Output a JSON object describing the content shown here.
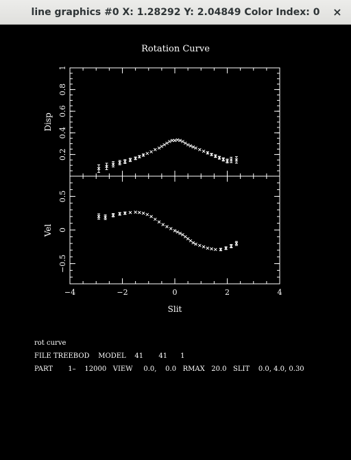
{
  "window": {
    "title": "line graphics #0 X: 1.28292 Y: 2.04849 Color Index: 0",
    "close_icon": "×"
  },
  "colors": {
    "background": "#000000",
    "foreground": "#ffffff",
    "titlebar": "#e8e8e7",
    "titlebar_text": "#2e3436"
  },
  "chart_data": [
    {
      "type": "scatter",
      "title": "Rotation Curve",
      "xlabel": "",
      "ylabel": "Disp",
      "xlim": [
        -4,
        4
      ],
      "ylim": [
        0,
        1
      ],
      "x_ticks": [],
      "y_ticks": [
        "0.2",
        "0.4",
        "0.6",
        "0.8",
        "1"
      ],
      "error_bars": true,
      "points": [
        {
          "x": -2.9,
          "y": 0.07,
          "err": 0.035
        },
        {
          "x": -2.6,
          "y": 0.09,
          "err": 0.03
        },
        {
          "x": -2.35,
          "y": 0.11,
          "err": 0.025
        },
        {
          "x": -2.1,
          "y": 0.125,
          "err": 0.02
        },
        {
          "x": -1.9,
          "y": 0.135,
          "err": 0.018
        },
        {
          "x": -1.7,
          "y": 0.15,
          "err": 0.015
        },
        {
          "x": -1.5,
          "y": 0.165,
          "err": 0.012
        },
        {
          "x": -1.35,
          "y": 0.18,
          "err": 0.01
        },
        {
          "x": -1.2,
          "y": 0.195,
          "err": 0.01
        },
        {
          "x": -1.05,
          "y": 0.21,
          "err": 0.008
        },
        {
          "x": -0.9,
          "y": 0.225,
          "err": 0.008
        },
        {
          "x": -0.75,
          "y": 0.245,
          "err": 0.008
        },
        {
          "x": -0.6,
          "y": 0.26,
          "err": 0.008
        },
        {
          "x": -0.5,
          "y": 0.275,
          "err": 0.008
        },
        {
          "x": -0.4,
          "y": 0.29,
          "err": 0.008
        },
        {
          "x": -0.3,
          "y": 0.305,
          "err": 0.008
        },
        {
          "x": -0.2,
          "y": 0.32,
          "err": 0.008
        },
        {
          "x": -0.1,
          "y": 0.33,
          "err": 0.008
        },
        {
          "x": 0.0,
          "y": 0.33,
          "err": 0.008
        },
        {
          "x": 0.1,
          "y": 0.335,
          "err": 0.008
        },
        {
          "x": 0.2,
          "y": 0.33,
          "err": 0.008
        },
        {
          "x": 0.3,
          "y": 0.32,
          "err": 0.008
        },
        {
          "x": 0.4,
          "y": 0.305,
          "err": 0.008
        },
        {
          "x": 0.5,
          "y": 0.29,
          "err": 0.008
        },
        {
          "x": 0.6,
          "y": 0.28,
          "err": 0.008
        },
        {
          "x": 0.7,
          "y": 0.27,
          "err": 0.008
        },
        {
          "x": 0.8,
          "y": 0.26,
          "err": 0.008
        },
        {
          "x": 0.95,
          "y": 0.245,
          "err": 0.008
        },
        {
          "x": 1.1,
          "y": 0.23,
          "err": 0.008
        },
        {
          "x": 1.25,
          "y": 0.215,
          "err": 0.01
        },
        {
          "x": 1.4,
          "y": 0.2,
          "err": 0.01
        },
        {
          "x": 1.55,
          "y": 0.185,
          "err": 0.012
        },
        {
          "x": 1.7,
          "y": 0.17,
          "err": 0.013
        },
        {
          "x": 1.85,
          "y": 0.155,
          "err": 0.015
        },
        {
          "x": 2.0,
          "y": 0.14,
          "err": 0.018
        },
        {
          "x": 2.15,
          "y": 0.15,
          "err": 0.025
        },
        {
          "x": 2.35,
          "y": 0.15,
          "err": 0.03
        }
      ]
    },
    {
      "type": "scatter",
      "title": "",
      "xlabel": "Slit",
      "ylabel": "Vel",
      "xlim": [
        -4,
        4
      ],
      "ylim": [
        -0.8,
        0.8
      ],
      "x_ticks": [
        "−4",
        "−2",
        "0",
        "2",
        "4"
      ],
      "y_ticks": [
        "−0.5",
        "0",
        "0.5"
      ],
      "error_bars": true,
      "points": [
        {
          "x": -2.9,
          "y": 0.2,
          "err": 0.04
        },
        {
          "x": -2.65,
          "y": 0.19,
          "err": 0.035
        },
        {
          "x": -2.35,
          "y": 0.22,
          "err": 0.025
        },
        {
          "x": -2.1,
          "y": 0.24,
          "err": 0.02
        },
        {
          "x": -1.9,
          "y": 0.25,
          "err": 0.018
        },
        {
          "x": -1.7,
          "y": 0.26,
          "err": 0.015
        },
        {
          "x": -1.5,
          "y": 0.265,
          "err": 0.012
        },
        {
          "x": -1.35,
          "y": 0.26,
          "err": 0.01
        },
        {
          "x": -1.2,
          "y": 0.25,
          "err": 0.01
        },
        {
          "x": -1.05,
          "y": 0.23,
          "err": 0.01
        },
        {
          "x": -0.9,
          "y": 0.2,
          "err": 0.01
        },
        {
          "x": -0.75,
          "y": 0.16,
          "err": 0.01
        },
        {
          "x": -0.6,
          "y": 0.12,
          "err": 0.01
        },
        {
          "x": -0.45,
          "y": 0.08,
          "err": 0.01
        },
        {
          "x": -0.3,
          "y": 0.05,
          "err": 0.01
        },
        {
          "x": -0.15,
          "y": 0.02,
          "err": 0.01
        },
        {
          "x": 0.0,
          "y": -0.01,
          "err": 0.01
        },
        {
          "x": 0.1,
          "y": -0.03,
          "err": 0.01
        },
        {
          "x": 0.2,
          "y": -0.05,
          "err": 0.01
        },
        {
          "x": 0.3,
          "y": -0.07,
          "err": 0.01
        },
        {
          "x": 0.4,
          "y": -0.1,
          "err": 0.01
        },
        {
          "x": 0.5,
          "y": -0.13,
          "err": 0.01
        },
        {
          "x": 0.6,
          "y": -0.16,
          "err": 0.01
        },
        {
          "x": 0.7,
          "y": -0.19,
          "err": 0.01
        },
        {
          "x": 0.8,
          "y": -0.21,
          "err": 0.01
        },
        {
          "x": 0.95,
          "y": -0.23,
          "err": 0.01
        },
        {
          "x": 1.1,
          "y": -0.25,
          "err": 0.01
        },
        {
          "x": 1.25,
          "y": -0.27,
          "err": 0.012
        },
        {
          "x": 1.4,
          "y": -0.28,
          "err": 0.015
        },
        {
          "x": 1.55,
          "y": -0.29,
          "err": 0.015
        },
        {
          "x": 1.75,
          "y": -0.29,
          "err": 0.018
        },
        {
          "x": 1.95,
          "y": -0.27,
          "err": 0.02
        },
        {
          "x": 2.15,
          "y": -0.24,
          "err": 0.025
        },
        {
          "x": 2.35,
          "y": -0.2,
          "err": 0.03
        }
      ]
    }
  ],
  "footer": {
    "line1": "rot curve",
    "line2": "FILE TREEBOD    MODEL    41       41      1",
    "line3": "PART       1–    12000   VIEW     0.0,    0.0   RMAX   20.0   SLIT    0.0, 4.0, 0.30"
  }
}
